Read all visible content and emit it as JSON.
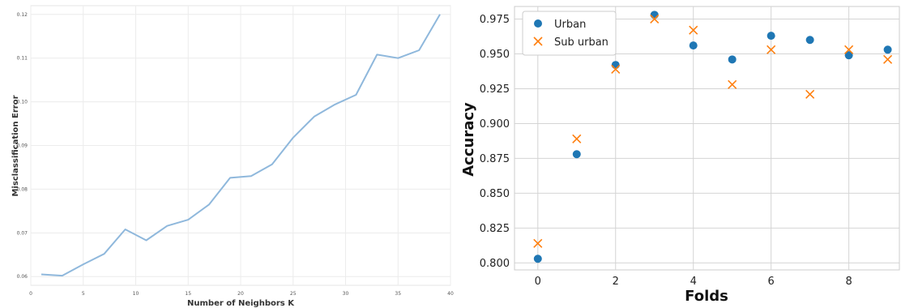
{
  "chart_data": [
    {
      "type": "line",
      "title": "",
      "xlabel": "Number of Neighbors K",
      "ylabel": "Misclassification Error",
      "xlim": [
        0,
        40
      ],
      "ylim": [
        0.058,
        0.122
      ],
      "xticks": [
        "0",
        "5",
        "10",
        "15",
        "20",
        "25",
        "30",
        "35",
        "40"
      ],
      "yticks": [
        "0.06",
        "0.07",
        "0.08",
        "0.09",
        "0.10",
        "0.11",
        "0.12"
      ],
      "grid": true,
      "color": "#8fb8dc",
      "series": [
        {
          "x": [
            1,
            3,
            5,
            7,
            9,
            11,
            13,
            15,
            17,
            19,
            21,
            23,
            25,
            27,
            29,
            31,
            33,
            35,
            37,
            39
          ],
          "values": [
            0.0605,
            0.0602,
            0.0628,
            0.0652,
            0.0708,
            0.0683,
            0.0716,
            0.073,
            0.0765,
            0.0826,
            0.083,
            0.0857,
            0.0918,
            0.0966,
            0.0994,
            0.1016,
            0.1108,
            0.11,
            0.1118,
            0.12
          ]
        }
      ]
    },
    {
      "type": "scatter",
      "title": "",
      "xlabel": "Folds",
      "ylabel": "Accuracy",
      "xlim": [
        -0.6,
        9.3
      ],
      "ylim": [
        0.795,
        0.984
      ],
      "xticks": [
        "0",
        "2",
        "4",
        "6",
        "8"
      ],
      "yticks": [
        "0.800",
        "0.825",
        "0.850",
        "0.875",
        "0.900",
        "0.925",
        "0.950",
        "0.975"
      ],
      "grid": true,
      "legend_position": "top-left",
      "series": [
        {
          "name": "Urban",
          "marker": "circle",
          "color": "#1f77b4",
          "x": [
            0,
            1,
            2,
            3,
            4,
            5,
            6,
            7,
            8,
            9
          ],
          "values": [
            0.803,
            0.878,
            0.942,
            0.978,
            0.956,
            0.946,
            0.963,
            0.96,
            0.949,
            0.953
          ]
        },
        {
          "name": "Sub urban",
          "marker": "x",
          "color": "#ff7f0e",
          "x": [
            0,
            1,
            2,
            3,
            4,
            5,
            6,
            7,
            8,
            9
          ],
          "values": [
            0.814,
            0.889,
            0.939,
            0.975,
            0.967,
            0.928,
            0.953,
            0.921,
            0.953,
            0.946
          ]
        }
      ]
    }
  ]
}
